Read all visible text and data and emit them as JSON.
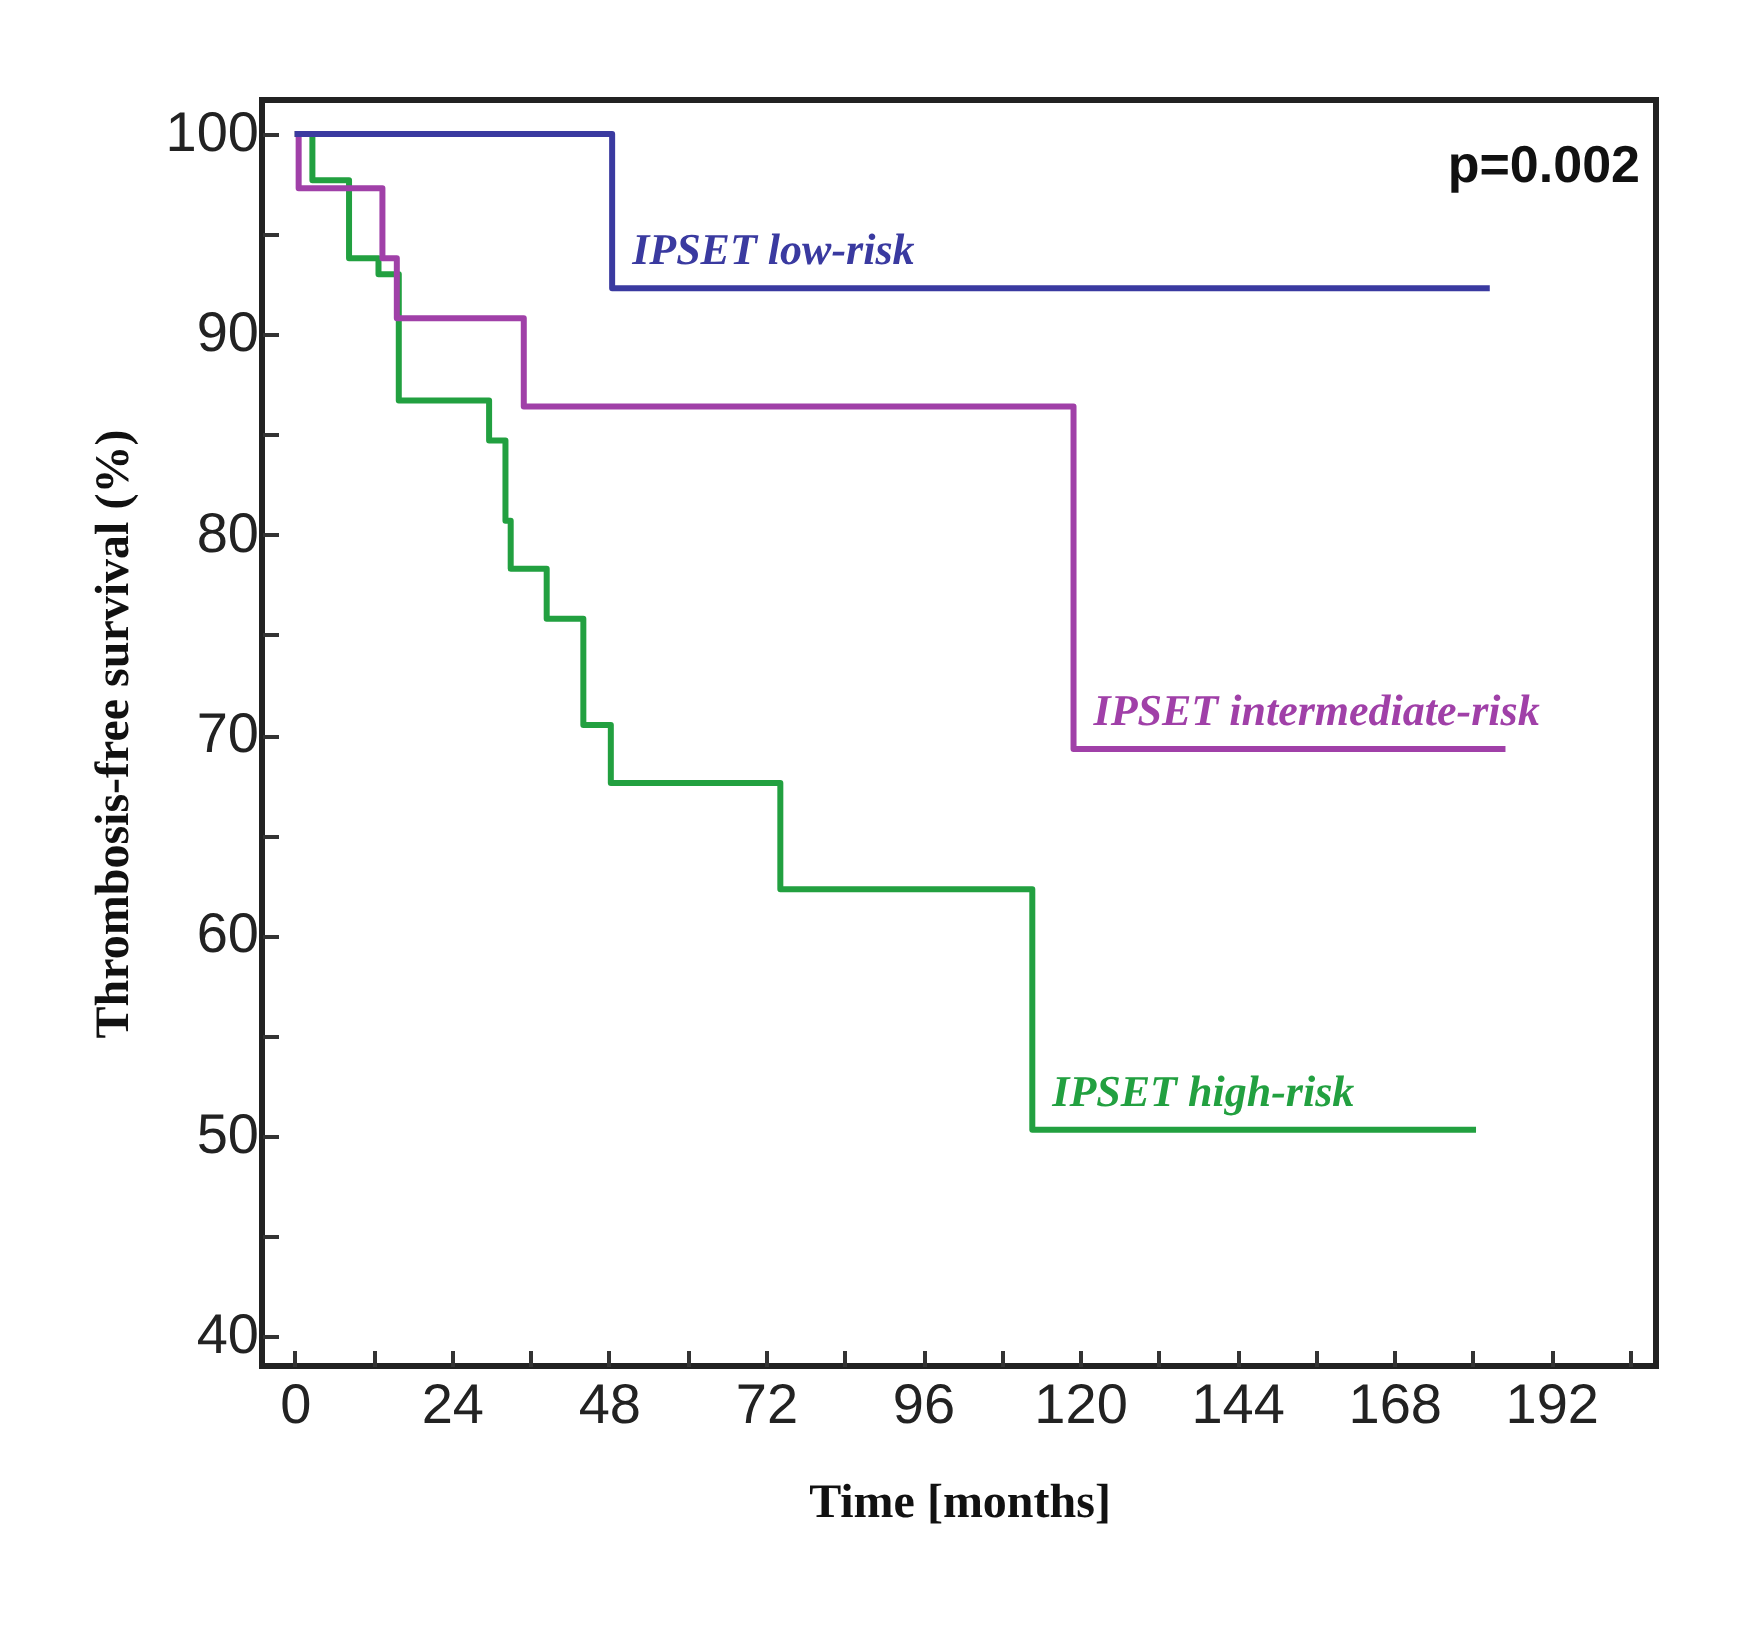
{
  "chart_data": {
    "type": "step",
    "xlabel": "Time [months]",
    "ylabel": "Thrombosis-free survival (%)",
    "annotations": [
      "p=0.002"
    ],
    "xlim": [
      -5,
      208
    ],
    "ylim": [
      38.5,
      101.7
    ],
    "xticks": [
      0,
      {
        "value": 12,
        "label": null
      },
      24,
      {
        "value": 36,
        "label": null
      },
      48,
      {
        "value": 60,
        "label": null
      },
      72,
      {
        "value": 84,
        "label": null
      },
      96,
      {
        "value": 108,
        "label": null
      },
      120,
      {
        "value": 132,
        "label": null
      },
      144,
      {
        "value": 156,
        "label": null
      },
      168,
      {
        "value": 180,
        "label": null
      },
      192,
      {
        "value": 204,
        "label": null
      }
    ],
    "yticks": [
      40,
      {
        "value": 45,
        "label": null
      },
      50,
      {
        "value": 55,
        "label": null
      },
      60,
      {
        "value": 65,
        "label": null
      },
      70,
      {
        "value": 75,
        "label": null
      },
      80,
      {
        "value": 85,
        "label": null
      },
      90,
      {
        "value": 95,
        "label": null
      },
      100
    ],
    "series": [
      {
        "name": "IPSET low-risk",
        "color": "#3a3aa0",
        "x": [
          0,
          48.5,
          182.6
        ],
        "values": [
          100,
          92.3,
          92.3
        ]
      },
      {
        "name": "IPSET intermediate-risk",
        "color": "#a040a8",
        "x": [
          0,
          0.6,
          13.4,
          15.6,
          35,
          119,
          185
        ],
        "values": [
          100,
          97.3,
          93.8,
          90.8,
          86.4,
          69.3,
          69.3
        ]
      },
      {
        "name": "IPSET high-risk",
        "color": "#22a040",
        "x": [
          0,
          2.7,
          8.3,
          12.8,
          15.9,
          29.7,
          32.2,
          33,
          38.5,
          44.1,
          48.3,
          74.2,
          112.7,
          180.5
        ],
        "values": [
          100,
          97.7,
          93.8,
          93.0,
          86.7,
          84.7,
          80.7,
          78.3,
          75.8,
          70.5,
          67.6,
          62.3,
          50.3,
          50.3
        ]
      }
    ]
  }
}
